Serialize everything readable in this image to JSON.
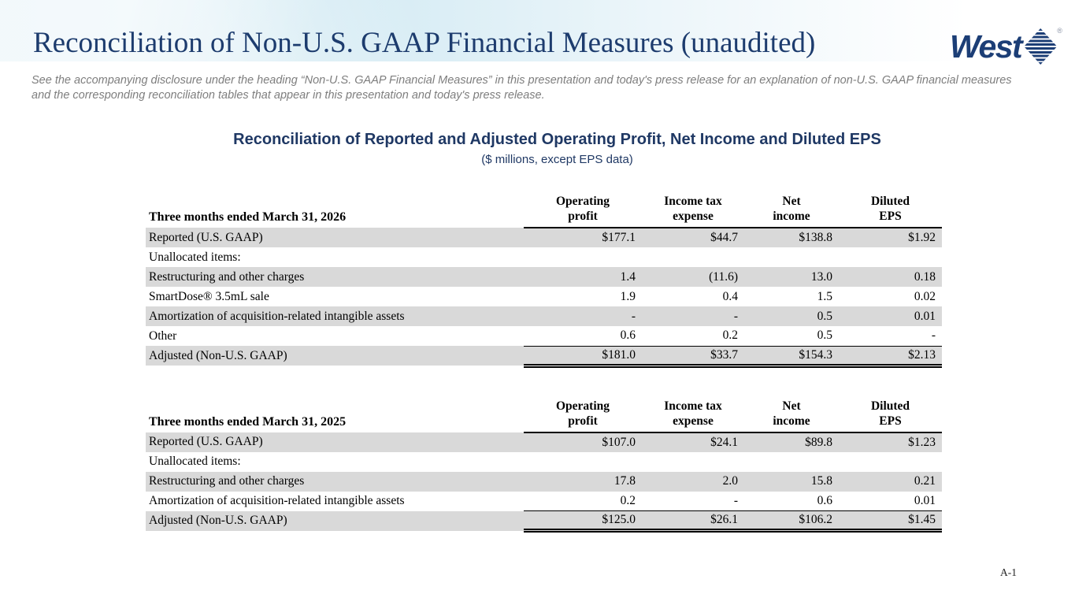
{
  "slide": {
    "title": "Reconciliation of Non-U.S. GAAP Financial Measures (unaudited)",
    "disclaimer": "See the accompanying disclosure under the heading “Non-U.S. GAAP Financial Measures” in this presentation and today's press release for an explanation of non-U.S. GAAP financial measures and the corresponding reconciliation tables that appear in this presentation and today's press release.",
    "page_number": "A-1",
    "logo_text": "West",
    "logo_registered": "®"
  },
  "section": {
    "heading": "Reconciliation of Reported and Adjusted Operating Profit, Net Income and Diluted EPS",
    "subheading": "($ millions, except EPS data)"
  },
  "columns": [
    {
      "line1": "Operating",
      "line2": "profit"
    },
    {
      "line1": "Income tax",
      "line2": "expense"
    },
    {
      "line1": "Net",
      "line2": "income"
    },
    {
      "line1": "Diluted",
      "line2": "EPS"
    }
  ],
  "tables": [
    {
      "period_label": "Three months ended March 31, 2026",
      "rows": [
        {
          "label": "Reported (U.S. GAAP)",
          "values": [
            "$177.1",
            "$44.7",
            "$138.8",
            "$1.92"
          ],
          "shaded": true
        },
        {
          "label": "Unallocated items:",
          "values": [
            "",
            "",
            "",
            ""
          ],
          "shaded": false
        },
        {
          "label": "Restructuring and other charges",
          "values": [
            "1.4",
            "(11.6)",
            "13.0",
            "0.18"
          ],
          "shaded": true
        },
        {
          "label": "SmartDose® 3.5mL sale",
          "values": [
            "1.9",
            "0.4",
            "1.5",
            "0.02"
          ],
          "shaded": false
        },
        {
          "label": "Amortization of acquisition-related intangible assets",
          "values": [
            "-",
            "-",
            "0.5",
            "0.01"
          ],
          "shaded": true
        },
        {
          "label": "Other",
          "values": [
            "0.6",
            "0.2",
            "0.5",
            "-"
          ],
          "shaded": false,
          "rule_below": true
        },
        {
          "label": "Adjusted (Non-U.S. GAAP)",
          "values": [
            "$181.0",
            "$33.7",
            "$154.3",
            "$2.13"
          ],
          "shaded": true,
          "total": true
        }
      ]
    },
    {
      "period_label": "Three months ended March 31, 2025",
      "rows": [
        {
          "label": "Reported (U.S. GAAP)",
          "values": [
            "$107.0",
            "$24.1",
            "$89.8",
            "$1.23"
          ],
          "shaded": true
        },
        {
          "label": "Unallocated items:",
          "values": [
            "",
            "",
            "",
            ""
          ],
          "shaded": false
        },
        {
          "label": "Restructuring and other charges",
          "values": [
            "17.8",
            "2.0",
            "15.8",
            "0.21"
          ],
          "shaded": true
        },
        {
          "label": "Amortization of acquisition-related intangible assets",
          "values": [
            "0.2",
            "-",
            "0.6",
            "0.01"
          ],
          "shaded": false,
          "rule_below": true
        },
        {
          "label": "Adjusted (Non-U.S. GAAP)",
          "values": [
            "$125.0",
            "$26.1",
            "$106.2",
            "$1.45"
          ],
          "shaded": true,
          "total": true
        }
      ]
    }
  ],
  "colors": {
    "navy_accent": "#1f3864",
    "navy_title": "#1d3c6e",
    "navy_logo": "#1c3e76",
    "band_blue": "#c6e4ef",
    "row_shade": "#d9d9d9",
    "gray_text": "#7e7e7e"
  }
}
